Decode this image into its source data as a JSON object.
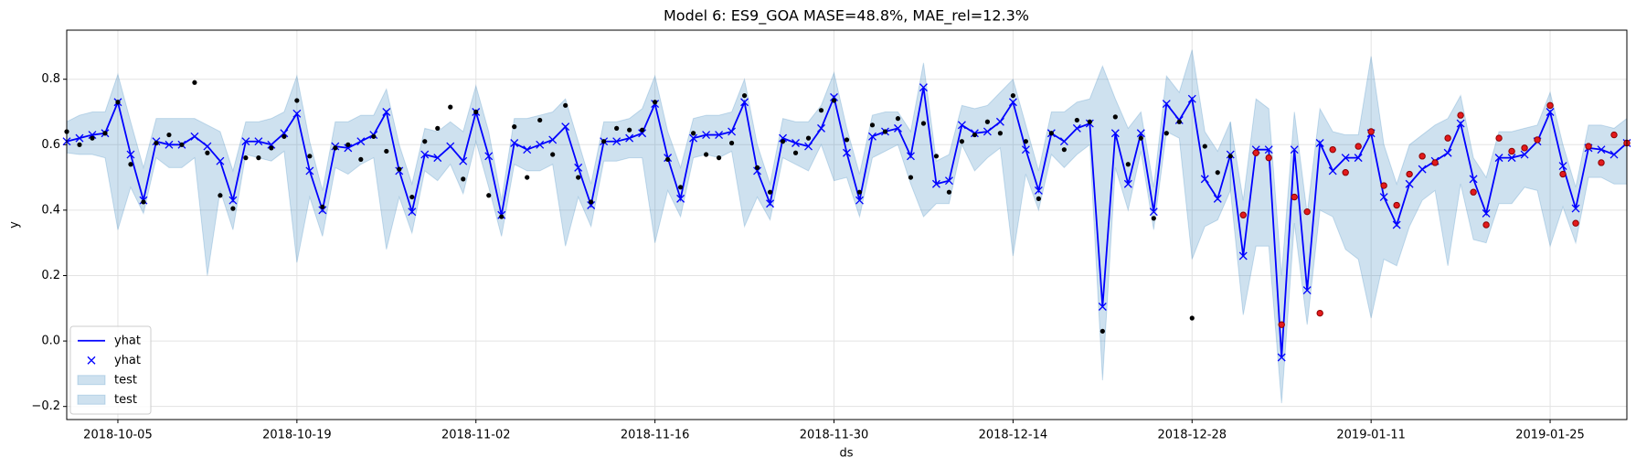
{
  "chart_data": {
    "type": "line",
    "title": "Model 6: ES9_GOA MASE=48.8%, MAE_rel=12.3%",
    "xlabel": "ds",
    "ylabel": "y",
    "x": [
      "2018-10-01",
      "2018-10-02",
      "2018-10-03",
      "2018-10-04",
      "2018-10-05",
      "2018-10-06",
      "2018-10-07",
      "2018-10-08",
      "2018-10-09",
      "2018-10-10",
      "2018-10-11",
      "2018-10-12",
      "2018-10-13",
      "2018-10-14",
      "2018-10-15",
      "2018-10-16",
      "2018-10-17",
      "2018-10-18",
      "2018-10-19",
      "2018-10-20",
      "2018-10-21",
      "2018-10-22",
      "2018-10-23",
      "2018-10-24",
      "2018-10-25",
      "2018-10-26",
      "2018-10-27",
      "2018-10-28",
      "2018-10-29",
      "2018-10-30",
      "2018-10-31",
      "2018-11-01",
      "2018-11-02",
      "2018-11-03",
      "2018-11-04",
      "2018-11-05",
      "2018-11-06",
      "2018-11-07",
      "2018-11-08",
      "2018-11-09",
      "2018-11-10",
      "2018-11-11",
      "2018-11-12",
      "2018-11-13",
      "2018-11-14",
      "2018-11-15",
      "2018-11-16",
      "2018-11-17",
      "2018-11-18",
      "2018-11-19",
      "2018-11-20",
      "2018-11-21",
      "2018-11-22",
      "2018-11-23",
      "2018-11-24",
      "2018-11-25",
      "2018-11-26",
      "2018-11-27",
      "2018-11-28",
      "2018-11-29",
      "2018-11-30",
      "2018-12-01",
      "2018-12-02",
      "2018-12-03",
      "2018-12-04",
      "2018-12-05",
      "2018-12-06",
      "2018-12-07",
      "2018-12-08",
      "2018-12-09",
      "2018-12-10",
      "2018-12-11",
      "2018-12-12",
      "2018-12-13",
      "2018-12-14",
      "2018-12-15",
      "2018-12-16",
      "2018-12-17",
      "2018-12-18",
      "2018-12-19",
      "2018-12-20",
      "2018-12-21",
      "2018-12-22",
      "2018-12-23",
      "2018-12-24",
      "2018-12-25",
      "2018-12-26",
      "2018-12-27",
      "2018-12-28",
      "2018-12-29",
      "2018-12-30",
      "2018-12-31",
      "2019-01-01",
      "2019-01-02",
      "2019-01-03",
      "2019-01-04",
      "2019-01-05",
      "2019-01-06",
      "2019-01-07",
      "2019-01-08",
      "2019-01-09",
      "2019-01-10",
      "2019-01-11",
      "2019-01-12",
      "2019-01-13",
      "2019-01-14",
      "2019-01-15",
      "2019-01-16",
      "2019-01-17",
      "2019-01-18",
      "2019-01-19",
      "2019-01-20",
      "2019-01-21",
      "2019-01-22",
      "2019-01-23",
      "2019-01-24",
      "2019-01-25",
      "2019-01-26",
      "2019-01-27",
      "2019-01-28",
      "2019-01-29",
      "2019-01-30",
      "2019-01-31"
    ],
    "xlim": [
      "2018-10-01",
      "2019-01-31"
    ],
    "xticks": [
      "2018-10-05",
      "2018-10-19",
      "2018-11-02",
      "2018-11-16",
      "2018-11-30",
      "2018-12-14",
      "2018-12-28",
      "2019-01-11",
      "2019-01-25"
    ],
    "ylim": [
      -0.24,
      0.95
    ],
    "yticks": [
      {
        "value": -0.2,
        "label": "−0.2"
      },
      {
        "value": 0,
        "label": "0.0"
      },
      0.2,
      0.4,
      0.6,
      0.8
    ],
    "grid": true,
    "legend": "lower left",
    "series": [
      {
        "name": "yhat",
        "kind": "line",
        "color": "#0000ff",
        "values": [
          0.61,
          0.62,
          0.63,
          0.635,
          0.73,
          0.57,
          0.43,
          0.61,
          0.6,
          0.6,
          0.625,
          0.595,
          0.55,
          0.43,
          0.61,
          0.61,
          0.6,
          0.635,
          0.695,
          0.52,
          0.4,
          0.595,
          0.59,
          0.61,
          0.63,
          0.7,
          0.52,
          0.395,
          0.57,
          0.56,
          0.595,
          0.55,
          0.7,
          0.565,
          0.385,
          0.605,
          0.585,
          0.6,
          0.615,
          0.655,
          0.53,
          0.415,
          0.61,
          0.61,
          0.62,
          0.635,
          0.725,
          0.56,
          0.435,
          0.62,
          0.63,
          0.63,
          0.64,
          0.73,
          0.52,
          0.42,
          0.62,
          0.605,
          0.595,
          0.65,
          0.745,
          0.575,
          0.43,
          0.625,
          0.64,
          0.65,
          0.565,
          0.775,
          0.48,
          0.49,
          0.66,
          0.635,
          0.64,
          0.67,
          0.73,
          0.585,
          0.46,
          0.635,
          0.61,
          0.65,
          0.665,
          0.105,
          0.635,
          0.48,
          0.635,
          0.395,
          0.725,
          0.675,
          0.74,
          0.495,
          0.435,
          0.57,
          0.26,
          0.585,
          0.585,
          -0.05,
          0.585,
          0.155,
          0.605,
          0.52,
          0.56,
          0.56,
          0.635,
          0.44,
          0.355,
          0.48,
          0.525,
          0.55,
          0.575,
          0.665,
          0.495,
          0.39,
          0.56,
          0.56,
          0.57,
          0.61,
          0.7,
          0.535,
          0.405,
          0.59,
          0.585,
          0.57,
          0.605
        ]
      },
      {
        "name": "yhat",
        "kind": "marker",
        "color": "#0000ff",
        "values": [
          0.61,
          0.62,
          0.63,
          0.635,
          0.73,
          0.57,
          0.43,
          0.61,
          0.6,
          0.6,
          0.625,
          0.595,
          0.55,
          0.43,
          0.61,
          0.61,
          0.6,
          0.635,
          0.695,
          0.52,
          0.4,
          0.595,
          0.59,
          0.61,
          0.63,
          0.7,
          0.52,
          0.395,
          0.57,
          0.56,
          0.595,
          0.55,
          0.7,
          0.565,
          0.385,
          0.605,
          0.585,
          0.6,
          0.615,
          0.655,
          0.53,
          0.415,
          0.61,
          0.61,
          0.62,
          0.635,
          0.725,
          0.56,
          0.435,
          0.62,
          0.63,
          0.63,
          0.64,
          0.73,
          0.52,
          0.42,
          0.62,
          0.605,
          0.595,
          0.65,
          0.745,
          0.575,
          0.43,
          0.625,
          0.64,
          0.65,
          0.565,
          0.775,
          0.48,
          0.49,
          0.66,
          0.635,
          0.64,
          0.67,
          0.73,
          0.585,
          0.46,
          0.635,
          0.61,
          0.65,
          0.665,
          0.105,
          0.635,
          0.48,
          0.635,
          0.395,
          0.725,
          0.675,
          0.74,
          0.495,
          0.435,
          0.57,
          0.26,
          0.585,
          0.585,
          -0.05,
          0.585,
          0.155,
          0.605,
          0.52,
          0.56,
          0.56,
          0.635,
          0.44,
          0.355,
          0.48,
          0.525,
          0.55,
          0.575,
          0.665,
          0.495,
          0.39,
          0.56,
          0.56,
          0.57,
          0.61,
          0.7,
          0.535,
          0.405,
          0.59,
          0.585,
          0.57,
          0.605
        ]
      },
      {
        "name": "test",
        "kind": "band",
        "color": "#1f77b4",
        "alpha": 0.22,
        "upper": [
          0.67,
          0.69,
          0.7,
          0.7,
          0.815,
          0.67,
          0.53,
          0.68,
          0.68,
          0.68,
          0.68,
          0.66,
          0.64,
          0.52,
          0.67,
          0.67,
          0.68,
          0.7,
          0.81,
          0.61,
          0.46,
          0.67,
          0.67,
          0.69,
          0.69,
          0.77,
          0.6,
          0.48,
          0.65,
          0.64,
          0.67,
          0.64,
          0.78,
          0.64,
          0.43,
          0.68,
          0.68,
          0.69,
          0.7,
          0.74,
          0.61,
          0.48,
          0.67,
          0.67,
          0.68,
          0.71,
          0.81,
          0.64,
          0.53,
          0.68,
          0.69,
          0.69,
          0.7,
          0.8,
          0.6,
          0.48,
          0.68,
          0.67,
          0.67,
          0.72,
          0.82,
          0.65,
          0.51,
          0.69,
          0.7,
          0.7,
          0.64,
          0.85,
          0.55,
          0.57,
          0.72,
          0.71,
          0.72,
          0.76,
          0.8,
          0.66,
          0.52,
          0.7,
          0.7,
          0.73,
          0.74,
          0.84,
          0.74,
          0.65,
          0.7,
          0.47,
          0.81,
          0.76,
          0.89,
          0.64,
          0.58,
          0.67,
          null,
          null,
          null,
          null,
          null,
          null,
          null,
          null,
          null,
          null,
          null,
          null,
          null,
          null,
          null,
          null,
          null,
          null,
          null,
          null,
          null,
          null,
          null,
          null,
          null,
          null,
          null,
          null,
          null,
          null,
          null
        ],
        "lower": [
          0.575,
          0.57,
          0.57,
          0.56,
          0.34,
          0.47,
          0.39,
          0.56,
          0.53,
          0.53,
          0.56,
          0.2,
          0.46,
          0.34,
          0.57,
          0.56,
          0.55,
          0.58,
          0.24,
          0.44,
          0.32,
          0.53,
          0.51,
          0.54,
          0.56,
          0.28,
          0.44,
          0.33,
          0.52,
          0.49,
          0.54,
          0.45,
          0.61,
          0.47,
          0.32,
          0.54,
          0.52,
          0.52,
          0.54,
          0.29,
          0.44,
          0.35,
          0.55,
          0.55,
          0.56,
          0.56,
          0.3,
          0.46,
          0.38,
          0.56,
          0.57,
          0.56,
          0.58,
          0.35,
          0.44,
          0.37,
          0.56,
          0.54,
          0.52,
          0.6,
          0.49,
          0.5,
          0.38,
          0.56,
          0.58,
          0.6,
          0.48,
          0.38,
          0.42,
          0.42,
          0.6,
          0.52,
          0.56,
          0.59,
          0.26,
          0.51,
          0.4,
          0.57,
          0.53,
          0.57,
          0.6,
          -0.12,
          0.53,
          0.4,
          0.58,
          0.34,
          0.64,
          0.62,
          0.25,
          0.35,
          0.37,
          0.46,
          null,
          null,
          null,
          null,
          null,
          null,
          null,
          null,
          null,
          null,
          null,
          null,
          null,
          null,
          null,
          null,
          null,
          null,
          null,
          null,
          null,
          null,
          null,
          null,
          null,
          null,
          null,
          null,
          null,
          null,
          null
        ]
      },
      {
        "name": "test",
        "kind": "band",
        "color": "#1f77b4",
        "alpha": 0.22,
        "x": [
          "2018-12-31",
          "2019-01-01",
          "2019-01-02",
          "2019-01-03",
          "2019-01-04",
          "2019-01-05",
          "2019-01-06",
          "2019-01-07",
          "2019-01-08",
          "2019-01-09",
          "2019-01-10",
          "2019-01-11",
          "2019-01-12",
          "2019-01-13",
          "2019-01-14",
          "2019-01-15",
          "2019-01-16",
          "2019-01-17",
          "2019-01-18",
          "2019-01-19",
          "2019-01-20",
          "2019-01-21",
          "2019-01-22",
          "2019-01-23",
          "2019-01-24",
          "2019-01-25",
          "2019-01-26",
          "2019-01-27",
          "2019-01-28",
          "2019-01-29",
          "2019-01-30",
          "2019-01-31"
        ],
        "upper": [
          0.67,
          0.43,
          0.74,
          0.71,
          0.2,
          0.7,
          0.39,
          0.71,
          0.64,
          0.63,
          0.63,
          0.87,
          0.6,
          0.48,
          0.6,
          0.63,
          0.66,
          0.68,
          0.75,
          0.56,
          0.5,
          0.64,
          0.64,
          0.65,
          0.66,
          0.76,
          0.6,
          0.47,
          0.66,
          0.66,
          0.65,
          0.68
        ],
        "lower": [
          0.46,
          0.08,
          0.29,
          0.29,
          -0.19,
          0.36,
          0.05,
          0.4,
          0.38,
          0.28,
          0.25,
          0.07,
          0.25,
          0.23,
          0.35,
          0.43,
          0.46,
          0.23,
          0.48,
          0.31,
          0.3,
          0.42,
          0.42,
          0.47,
          0.46,
          0.29,
          0.41,
          0.3,
          0.5,
          0.5,
          0.48,
          0.48
        ]
      },
      {
        "kind": "scatter",
        "color": "#000000",
        "values": [
          0.64,
          0.6,
          0.62,
          0.635,
          0.73,
          0.54,
          0.425,
          0.605,
          0.63,
          0.6,
          0.79,
          0.575,
          0.445,
          0.405,
          0.56,
          0.56,
          0.59,
          0.625,
          0.735,
          0.565,
          0.41,
          0.59,
          0.6,
          0.555,
          0.625,
          0.58,
          0.525,
          0.44,
          0.61,
          0.65,
          0.715,
          0.495,
          0.7,
          0.445,
          0.38,
          0.655,
          0.5,
          0.675,
          0.57,
          0.72,
          0.5,
          0.425,
          0.61,
          0.65,
          0.645,
          0.645,
          0.73,
          0.555,
          0.47,
          0.635,
          0.57,
          0.56,
          0.605,
          0.75,
          0.53,
          0.455,
          0.61,
          0.575,
          0.62,
          0.705,
          0.735,
          0.615,
          0.455,
          0.66,
          0.64,
          0.68,
          0.5,
          0.665,
          0.565,
          0.455,
          0.61,
          0.63,
          0.67,
          0.635,
          0.75,
          0.61,
          0.435,
          0.635,
          0.585,
          0.675,
          0.67,
          0.03,
          0.685,
          0.54,
          0.62,
          0.375,
          0.635,
          0.67,
          0.07,
          0.595,
          0.515,
          0.565,
          null,
          null,
          null,
          null,
          null,
          null,
          null,
          null,
          null,
          null,
          null,
          null,
          null,
          null,
          null,
          null,
          null,
          null,
          null,
          null,
          null,
          null,
          null,
          null,
          null,
          null,
          null,
          null,
          null,
          null,
          null
        ]
      },
      {
        "kind": "scatter",
        "color": "#e31a1c",
        "edge": "#8b0000",
        "x": [
          "2019-01-01",
          "2019-01-02",
          "2019-01-03",
          "2019-01-04",
          "2019-01-05",
          "2019-01-06",
          "2019-01-07",
          "2019-01-08",
          "2019-01-09",
          "2019-01-10",
          "2019-01-11",
          "2019-01-12",
          "2019-01-13",
          "2019-01-14",
          "2019-01-15",
          "2019-01-16",
          "2019-01-17",
          "2019-01-18",
          "2019-01-19",
          "2019-01-20",
          "2019-01-21",
          "2019-01-22",
          "2019-01-23",
          "2019-01-24",
          "2019-01-25",
          "2019-01-26",
          "2019-01-27",
          "2019-01-28",
          "2019-01-29",
          "2019-01-30",
          "2019-01-31"
        ],
        "values": [
          0.385,
          0.575,
          0.56,
          0.05,
          0.44,
          0.395,
          0.085,
          0.585,
          0.515,
          0.595,
          0.64,
          0.475,
          0.415,
          0.51,
          0.565,
          0.545,
          0.62,
          0.69,
          0.455,
          0.355,
          0.62,
          0.58,
          0.59,
          0.615,
          0.72,
          0.51,
          0.36,
          0.595,
          0.545,
          0.63,
          0.605
        ]
      }
    ]
  }
}
